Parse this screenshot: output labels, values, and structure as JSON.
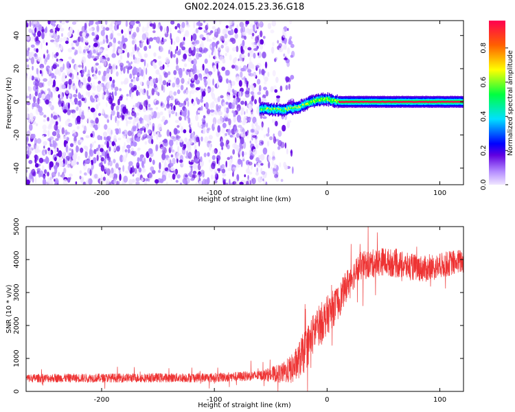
{
  "figure": {
    "title": "GN02.2024.015.23.36.G18"
  },
  "chart_data": [
    {
      "type": "heatmap",
      "panel": "spectrogram",
      "xlabel": "Height of straight line (km)",
      "ylabel": "Frequency (Hz)",
      "xlim": [
        -267,
        121
      ],
      "ylim": [
        -50,
        49
      ],
      "xticks": [
        -200,
        -100,
        0,
        100
      ],
      "yticks": [
        -40,
        -20,
        0,
        20,
        40
      ],
      "colorbar": {
        "label": "Normalized spectral amplitude",
        "range": [
          0,
          0.96
        ],
        "ticks": [
          0.0,
          0.2,
          0.4,
          0.6,
          0.8
        ],
        "colormap": [
          "#f0e6ff",
          "#b48cff",
          "#6000e0",
          "#0000ff",
          "#00e0ff",
          "#00ff40",
          "#ffff00",
          "#ff6000",
          "#ff0050"
        ]
      },
      "description_features": {
        "noise_region_x": [
          -267,
          -55
        ],
        "signal_emergence_x": -60,
        "signal_track": [
          {
            "x": -60,
            "freq": -4
          },
          {
            "x": -40,
            "freq": -5
          },
          {
            "x": -25,
            "freq": -3
          },
          {
            "x": -15,
            "freq": 0
          },
          {
            "x": -5,
            "freq": 1.5
          },
          {
            "x": 0,
            "freq": 1.5
          },
          {
            "x": 10,
            "freq": 0
          },
          {
            "x": 121,
            "freq": 0
          }
        ]
      }
    },
    {
      "type": "line",
      "panel": "snr",
      "xlabel": "Height of straight line (km)",
      "ylabel": "SNR (10 * v/v)",
      "xlim": [
        -267,
        121
      ],
      "ylim": [
        0,
        5000
      ],
      "xticks": [
        -200,
        -100,
        0,
        100
      ],
      "yticks": [
        0,
        1000,
        2000,
        3000,
        4000,
        5000
      ],
      "series": [
        {
          "color": "#ee3333",
          "envelope": [
            {
              "x": -267,
              "y": 400
            },
            {
              "x": -100,
              "y": 420
            },
            {
              "x": -60,
              "y": 480
            },
            {
              "x": -40,
              "y": 550
            },
            {
              "x": -30,
              "y": 700
            },
            {
              "x": -20,
              "y": 1200
            },
            {
              "x": -10,
              "y": 1900
            },
            {
              "x": 0,
              "y": 2300
            },
            {
              "x": 10,
              "y": 2700
            },
            {
              "x": 20,
              "y": 3400
            },
            {
              "x": 30,
              "y": 3800
            },
            {
              "x": 50,
              "y": 3950
            },
            {
              "x": 70,
              "y": 3800
            },
            {
              "x": 90,
              "y": 3700
            },
            {
              "x": 110,
              "y": 3900
            },
            {
              "x": 121,
              "y": 3950
            }
          ],
          "noise_amplitude": [
            {
              "x": -267,
              "y": 130
            },
            {
              "x": -60,
              "y": 150
            },
            {
              "x": -40,
              "y": 300
            },
            {
              "x": -20,
              "y": 650
            },
            {
              "x": 0,
              "y": 600
            },
            {
              "x": 20,
              "y": 450
            },
            {
              "x": 121,
              "y": 380
            }
          ]
        }
      ]
    }
  ]
}
